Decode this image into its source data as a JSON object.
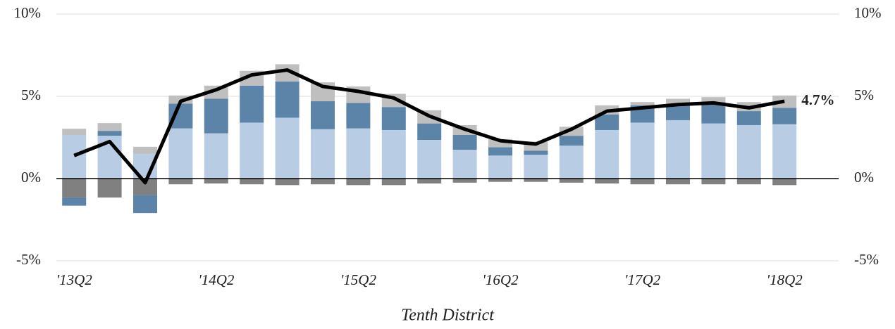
{
  "chart_data": {
    "type": "bar",
    "xlabel": "Tenth District",
    "categories": [
      "'13Q2",
      null,
      null,
      null,
      "'14Q2",
      null,
      null,
      null,
      "'15Q2",
      null,
      null,
      null,
      "'16Q2",
      null,
      null,
      null,
      "'17Q2",
      null,
      null,
      null,
      "'18Q2"
    ],
    "series": [
      {
        "color": "#b8cce4",
        "values": [
          2.65,
          2.6,
          1.5,
          3.05,
          2.75,
          3.4,
          3.7,
          3.0,
          3.05,
          2.95,
          2.35,
          1.75,
          1.4,
          1.45,
          2.0,
          2.95,
          3.4,
          3.55,
          3.35,
          3.25,
          3.3
        ]
      },
      {
        "color": "#808080",
        "values": [
          -1.15,
          -1.15,
          -1.0,
          -0.35,
          -0.3,
          -0.35,
          -0.4,
          -0.35,
          -0.4,
          -0.4,
          -0.3,
          -0.25,
          -0.2,
          -0.2,
          -0.25,
          -0.3,
          -0.35,
          -0.35,
          -0.35,
          -0.35,
          -0.4
        ]
      },
      {
        "color": "#5b84a8",
        "values": [
          -0.5,
          0.3,
          -1.1,
          1.5,
          2.1,
          2.25,
          2.2,
          1.7,
          1.55,
          1.4,
          1.0,
          0.9,
          0.5,
          0.25,
          0.6,
          0.95,
          1.05,
          0.9,
          1.3,
          0.85,
          1.0
        ]
      },
      {
        "color": "#bfbfbf",
        "values": [
          0.38,
          0.47,
          0.43,
          0.5,
          0.8,
          0.9,
          1.05,
          1.15,
          1.0,
          0.8,
          0.8,
          0.6,
          0.5,
          0.55,
          0.55,
          0.55,
          0.2,
          0.4,
          0.3,
          0.55,
          0.75
        ]
      }
    ],
    "line": {
      "color": "#000000",
      "values": [
        1.4,
        2.25,
        -0.25,
        4.7,
        5.4,
        6.3,
        6.6,
        5.6,
        5.3,
        4.9,
        3.8,
        3.0,
        2.3,
        2.1,
        3.0,
        4.1,
        4.3,
        4.5,
        4.6,
        4.3,
        4.7
      ],
      "end_label": "4.7%"
    },
    "ylim": [
      -5,
      10
    ],
    "yticks": [
      {
        "value": -5,
        "label": "-5%"
      },
      {
        "value": 0,
        "label": "0%"
      },
      {
        "value": 5,
        "label": "5%"
      },
      {
        "value": 10,
        "label": "10%"
      }
    ],
    "y2lim": [
      -5,
      10
    ],
    "y2ticks": [
      {
        "value": -5,
        "label": "-5%"
      },
      {
        "value": 0,
        "label": "0%"
      },
      {
        "value": 5,
        "label": "5%"
      },
      {
        "value": 10,
        "label": "10%"
      }
    ],
    "grid": true
  }
}
